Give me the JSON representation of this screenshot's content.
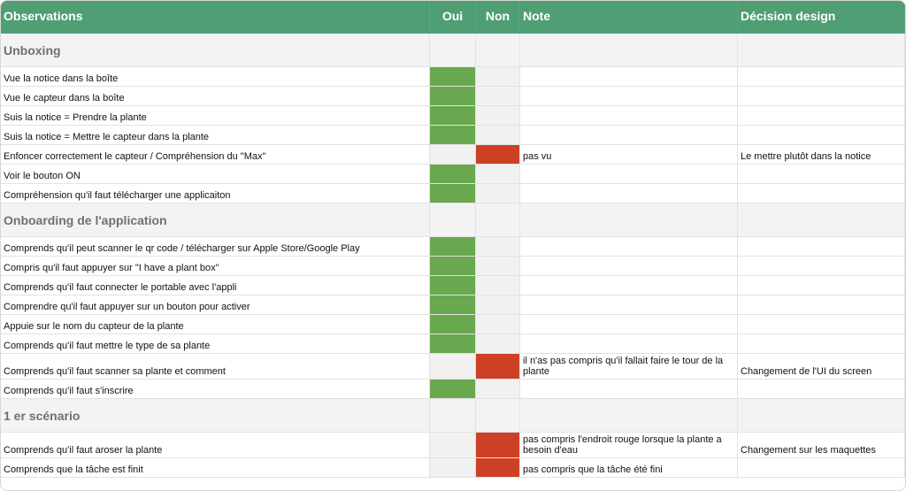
{
  "header": {
    "columns": [
      "Observations",
      "Oui",
      "Non",
      "Note",
      "Décision design"
    ]
  },
  "sections": [
    {
      "title": "Unboxing",
      "rows": [
        {
          "observation": "Vue la notice dans la boîte",
          "oui": true,
          "non": false
        },
        {
          "observation": "Vue le capteur dans la boîte",
          "oui": true,
          "non": false
        },
        {
          "observation": "Suis la notice = Prendre la plante",
          "oui": true,
          "non": false
        },
        {
          "observation": "Suis la notice = Mettre le capteur dans la plante",
          "oui": true,
          "non": false
        },
        {
          "observation": "Enfoncer correctement le capteur / Compréhension du \"Max\"",
          "oui": false,
          "non": true,
          "note": "pas vu",
          "decision": "Le mettre plutôt dans la notice"
        },
        {
          "observation": "Voir le bouton ON",
          "oui": true,
          "non": false
        },
        {
          "observation": "Compréhension qu'il faut télécharger une applicaiton",
          "oui": true,
          "non": false
        }
      ]
    },
    {
      "title": "Onboarding de l'application",
      "rows": [
        {
          "observation": "Comprends qu'il peut scanner le qr code / télécharger sur Apple Store/Google Play",
          "oui": true,
          "non": false
        },
        {
          "observation": "Compris qu'il faut appuyer sur \"I have a plant box\"",
          "oui": true,
          "non": false
        },
        {
          "observation": "Comprends qu'il faut connecter le portable avec l'appli",
          "oui": true,
          "non": false
        },
        {
          "observation": "Comprendre qu'il faut appuyer sur un bouton pour activer",
          "oui": true,
          "non": false
        },
        {
          "observation": "Appuie sur le nom du capteur de la plante",
          "oui": true,
          "non": false
        },
        {
          "observation": "Comprends qu'il faut mettre le type de sa plante",
          "oui": true,
          "non": false
        },
        {
          "observation": "Comprends qu'il faut scanner sa plante et comment",
          "oui": false,
          "non": true,
          "note": "il n'as pas compris qu'il fallait faire le tour de la plante",
          "decision": "Changement de l'UI du screen"
        },
        {
          "observation": "Comprends qu'il faut s'inscrire",
          "oui": true,
          "non": false
        }
      ]
    },
    {
      "title": "1 er scénario",
      "rows": [
        {
          "observation": "Comprends qu'il faut aroser la plante",
          "oui": false,
          "non": true,
          "note": "pas compris l'endroit rouge lorsque la plante a besoin d'eau",
          "decision": "Changement sur les maquettes"
        },
        {
          "observation": "Comprends que la tâche est finit",
          "oui": false,
          "non": true,
          "note": "pas compris que la tâche été fini"
        }
      ]
    }
  ]
}
